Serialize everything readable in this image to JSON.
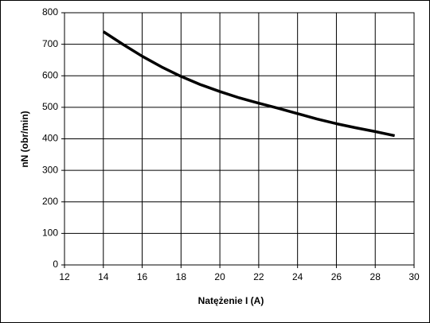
{
  "chart_data": {
    "type": "line",
    "x_label": "Natężenie I (A)",
    "y_label": "nN (obr/min)",
    "x": [
      14,
      15,
      16,
      17,
      18,
      19,
      20,
      21,
      22,
      23,
      24,
      25,
      26,
      27,
      28,
      29
    ],
    "series": [
      {
        "color": "#000000",
        "values": [
          740,
          700,
          662,
          628,
          598,
          572,
          550,
          530,
          513,
          497,
          480,
          463,
          448,
          435,
          423,
          410
        ]
      }
    ],
    "xlim": [
      12,
      30
    ],
    "xticks": [
      12,
      14,
      16,
      18,
      20,
      22,
      24,
      26,
      28,
      30
    ],
    "ylim": [
      0,
      800
    ],
    "yticks": [
      0,
      100,
      200,
      300,
      400,
      500,
      600,
      700,
      800
    ],
    "grid": true
  }
}
